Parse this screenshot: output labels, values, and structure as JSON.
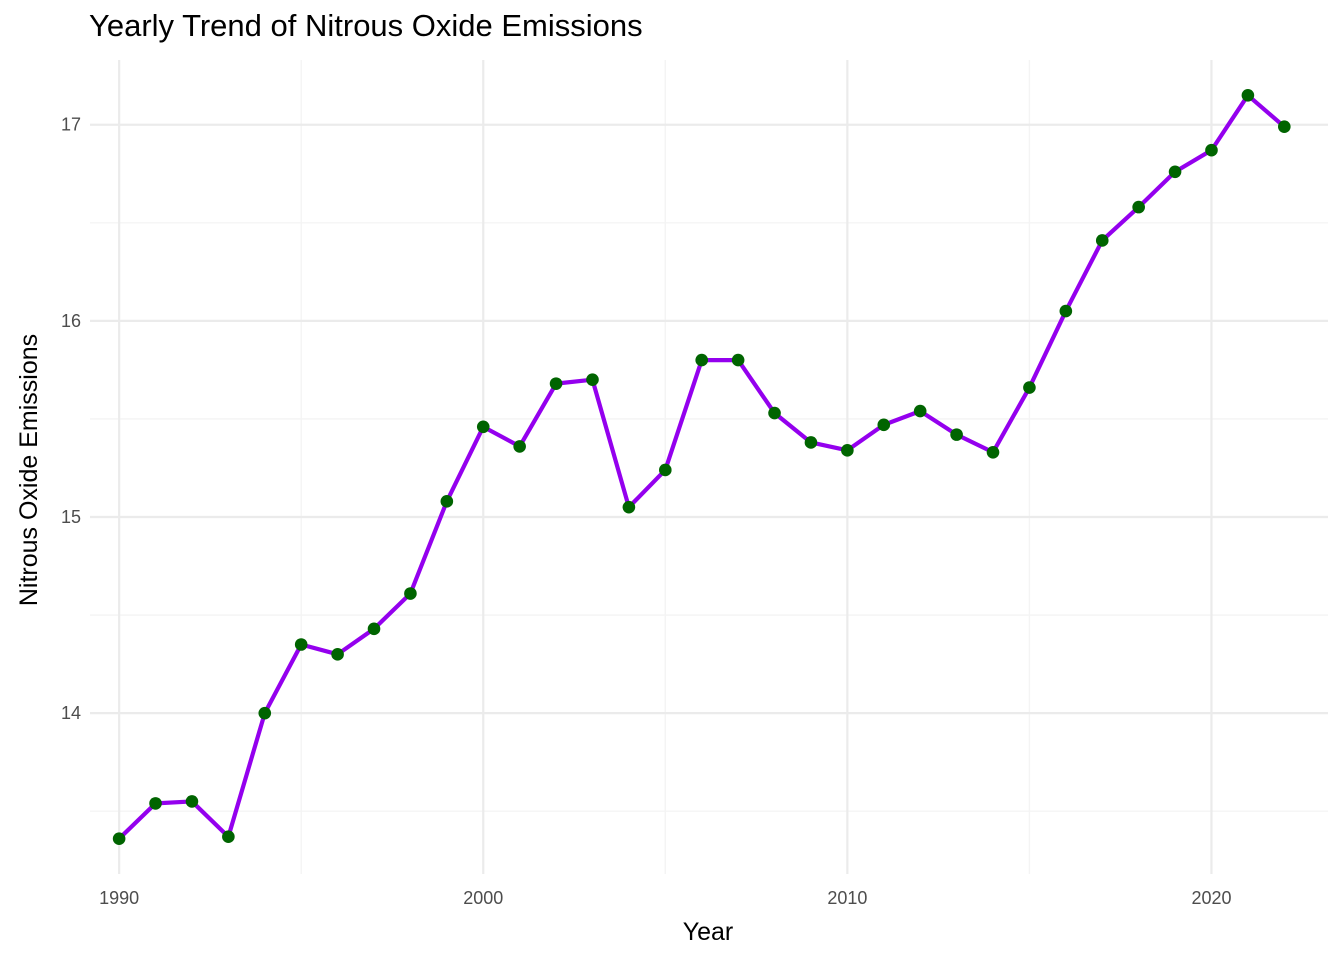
{
  "chart_data": {
    "type": "line",
    "title": "Yearly Trend of Nitrous Oxide Emissions",
    "xlabel": "Year",
    "ylabel": "Nitrous Oxide Emissions",
    "xlim": [
      1989.2,
      2023.2
    ],
    "ylim": [
      13.18,
      17.33
    ],
    "x_ticks": [
      1990,
      2000,
      2010,
      2020
    ],
    "y_ticks": [
      14,
      15,
      16,
      17
    ],
    "grid": true,
    "legend": "none",
    "series": [
      {
        "x": [
          1990,
          1991,
          1992,
          1993,
          1994,
          1995,
          1996,
          1997,
          1998,
          1999,
          2000,
          2001,
          2002,
          2003,
          2004,
          2005,
          2006,
          2007,
          2008,
          2009,
          2010,
          2011,
          2012,
          2013,
          2014,
          2015,
          2016,
          2017,
          2018,
          2019,
          2020,
          2021,
          2022
        ],
        "values": [
          13.36,
          13.54,
          13.55,
          13.37,
          14.0,
          14.35,
          14.3,
          14.43,
          14.61,
          15.08,
          15.46,
          15.36,
          15.68,
          15.7,
          15.05,
          15.24,
          15.8,
          15.8,
          15.53,
          15.38,
          15.34,
          15.47,
          15.54,
          15.42,
          15.33,
          15.66,
          16.05,
          16.41,
          16.58,
          16.76,
          16.87,
          17.15,
          16.99
        ]
      }
    ],
    "colors": {
      "line": "#9400ee",
      "point": "#006400",
      "grid_major": "#ebebeb",
      "grid_minor": "#f4f4f4",
      "tick_text": "#4d4d4d"
    }
  }
}
